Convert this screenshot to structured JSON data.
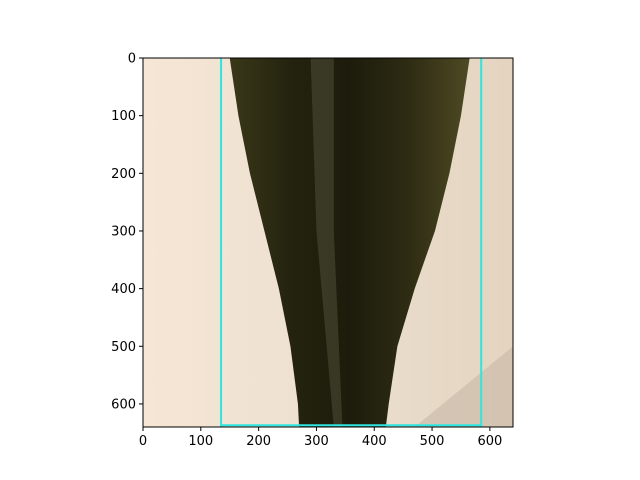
{
  "chart_data": {
    "type": "image",
    "title": "",
    "xlabel": "",
    "ylabel": "",
    "xlim": [
      0,
      640
    ],
    "ylim": [
      640,
      0
    ],
    "x_ticks": [
      0,
      100,
      200,
      300,
      400,
      500,
      600
    ],
    "y_ticks": [
      0,
      100,
      200,
      300,
      400,
      500,
      600
    ],
    "image_content": "dark olive-green glass bottle neck on a beige background, photographed vertically",
    "overlay_lines": [
      {
        "orientation": "vertical",
        "x": 135,
        "color": "#2ee6e0"
      },
      {
        "orientation": "vertical",
        "x": 585,
        "color": "#2ee6e0"
      },
      {
        "orientation": "horizontal",
        "y": 637,
        "x_from": 135,
        "x_to": 585,
        "color": "#2ee6e0"
      }
    ],
    "colors": {
      "background": "#efe3d4",
      "bottle": "#2b2a14",
      "bottle_edge": "#4a4520",
      "overlay": "#2ee6e0"
    }
  }
}
